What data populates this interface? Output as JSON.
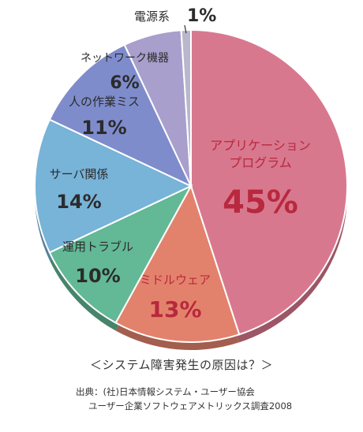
{
  "chart_data": {
    "type": "pie",
    "title": "＜システム障害発生の原因は？＞",
    "slices": [
      {
        "label": "アプリケーション\nプログラム",
        "value": 45,
        "display": "45%",
        "color": "#d8788e",
        "text_color": "#b8283e"
      },
      {
        "label": "ミドルウェア",
        "value": 13,
        "display": "13%",
        "color": "#e3826c",
        "text_color": "#b8283e"
      },
      {
        "label": "運用トラブル",
        "value": 10,
        "display": "10%",
        "color": "#63b896",
        "text_color": "#2b2b2b"
      },
      {
        "label": "サーバ関係",
        "value": 14,
        "display": "14%",
        "color": "#78b3d8",
        "text_color": "#2b2b2b"
      },
      {
        "label": "人の作業ミス",
        "value": 11,
        "display": "11%",
        "color": "#7f8ccc",
        "text_color": "#2b2b2b"
      },
      {
        "label": "ネットワーク機器",
        "value": 6,
        "display": "6%",
        "color": "#a99fcc",
        "text_color": "#2b2b2b"
      },
      {
        "label": "電源系",
        "value": 1,
        "display": "1%",
        "color": "#b9b7cc",
        "text_color": "#2b2b2b"
      }
    ]
  },
  "source": {
    "line1": "出典：(社)日本情報システム・ユーザー協会",
    "line2": "ユーザー企業ソフトウェアメトリックス調査2008"
  }
}
